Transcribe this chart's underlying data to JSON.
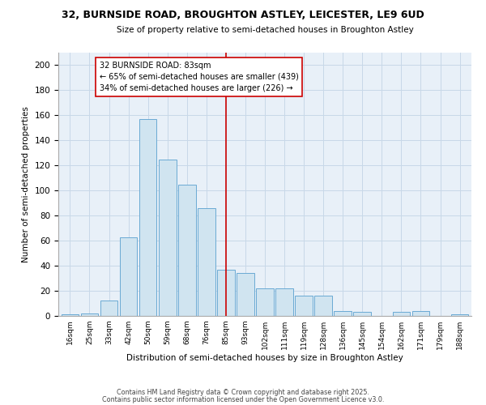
{
  "title_line1": "32, BURNSIDE ROAD, BROUGHTON ASTLEY, LEICESTER, LE9 6UD",
  "title_line2": "Size of property relative to semi-detached houses in Broughton Astley",
  "xlabel": "Distribution of semi-detached houses by size in Broughton Astley",
  "ylabel": "Number of semi-detached properties",
  "categories": [
    "16sqm",
    "25sqm",
    "33sqm",
    "42sqm",
    "50sqm",
    "59sqm",
    "68sqm",
    "76sqm",
    "85sqm",
    "93sqm",
    "102sqm",
    "111sqm",
    "119sqm",
    "128sqm",
    "136sqm",
    "145sqm",
    "154sqm",
    "162sqm",
    "171sqm",
    "179sqm",
    "188sqm"
  ],
  "values": [
    1,
    2,
    12,
    63,
    157,
    125,
    105,
    86,
    37,
    34,
    22,
    22,
    16,
    16,
    4,
    3,
    0,
    3,
    4,
    0,
    1
  ],
  "bar_color": "#d0e4f0",
  "bar_edge_color": "#6aaad4",
  "grid_color": "#c8d8e8",
  "background_color": "#e8f0f8",
  "vline_x": 8,
  "vline_color": "#cc0000",
  "annotation_text": "32 BURNSIDE ROAD: 83sqm\n← 65% of semi-detached houses are smaller (439)\n34% of semi-detached houses are larger (226) →",
  "annotation_box_color": "#cc0000",
  "footnote1": "Contains HM Land Registry data © Crown copyright and database right 2025.",
  "footnote2": "Contains public sector information licensed under the Open Government Licence v3.0.",
  "ylim": [
    0,
    210
  ],
  "yticks": [
    0,
    20,
    40,
    60,
    80,
    100,
    120,
    140,
    160,
    180,
    200
  ]
}
